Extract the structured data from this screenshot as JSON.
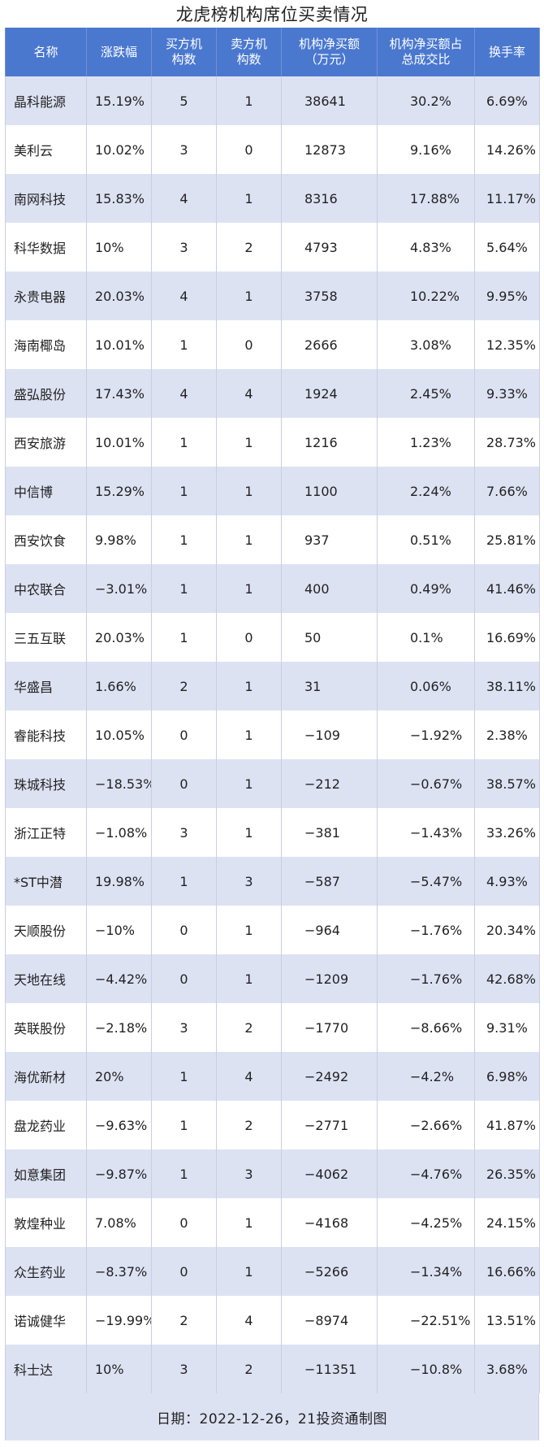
{
  "title": "龙虎榜机构席位买卖情况",
  "headers": [
    "名称",
    "涨跌幅",
    "买方机\n构数",
    "卖方机\n构数",
    "机构净买额\n（万元）",
    "机构净买额占\n总成交比",
    "换手率"
  ],
  "rows": [
    [
      "晶科能源",
      "15.19%",
      "5",
      "1",
      "38641",
      "30.2%",
      "6.69%"
    ],
    [
      "美利云",
      "10.02%",
      "3",
      "0",
      "12873",
      "9.16%",
      "14.26%"
    ],
    [
      "南网科技",
      "15.83%",
      "4",
      "1",
      "8316",
      "17.88%",
      "11.17%"
    ],
    [
      "科华数据",
      "10%",
      "3",
      "2",
      "4793",
      "4.83%",
      "5.64%"
    ],
    [
      "永贵电器",
      "20.03%",
      "4",
      "1",
      "3758",
      "10.22%",
      "9.95%"
    ],
    [
      "海南椰岛",
      "10.01%",
      "1",
      "0",
      "2666",
      "3.08%",
      "12.35%"
    ],
    [
      "盛弘股份",
      "17.43%",
      "4",
      "4",
      "1924",
      "2.45%",
      "9.33%"
    ],
    [
      "西安旅游",
      "10.01%",
      "1",
      "1",
      "1216",
      "1.23%",
      "28.73%"
    ],
    [
      "中信博",
      "15.29%",
      "1",
      "1",
      "1100",
      "2.24%",
      "7.66%"
    ],
    [
      "西安饮食",
      "9.98%",
      "1",
      "1",
      "937",
      "0.51%",
      "25.81%"
    ],
    [
      "中农联合",
      "−3.01%",
      "1",
      "1",
      "400",
      "0.49%",
      "41.46%"
    ],
    [
      "三五互联",
      "20.03%",
      "1",
      "0",
      "50",
      "0.1%",
      "16.69%"
    ],
    [
      "华盛昌",
      "1.66%",
      "2",
      "1",
      "31",
      "0.06%",
      "38.11%"
    ],
    [
      "睿能科技",
      "10.05%",
      "0",
      "1",
      "−109",
      "−1.92%",
      "2.38%"
    ],
    [
      "珠城科技",
      "−18.53%",
      "0",
      "1",
      "−212",
      "−0.67%",
      "38.57%"
    ],
    [
      "浙江正特",
      "−1.08%",
      "3",
      "1",
      "−381",
      "−1.43%",
      "33.26%"
    ],
    [
      "*ST中潜",
      "19.98%",
      "1",
      "3",
      "−587",
      "−5.47%",
      "4.93%"
    ],
    [
      "天顺股份",
      "−10%",
      "0",
      "1",
      "−964",
      "−1.76%",
      "20.34%"
    ],
    [
      "天地在线",
      "−4.42%",
      "0",
      "1",
      "−1209",
      "−1.76%",
      "42.68%"
    ],
    [
      "英联股份",
      "−2.18%",
      "3",
      "2",
      "−1770",
      "−8.66%",
      "9.31%"
    ],
    [
      "海优新材",
      "20%",
      "1",
      "4",
      "−2492",
      "−4.2%",
      "6.98%"
    ],
    [
      "盘龙药业",
      "−9.63%",
      "1",
      "2",
      "−2771",
      "−2.66%",
      "41.87%"
    ],
    [
      "如意集团",
      "−9.87%",
      "1",
      "3",
      "−4062",
      "−4.76%",
      "26.35%"
    ],
    [
      "敦煌种业",
      "7.08%",
      "0",
      "1",
      "−4168",
      "−4.25%",
      "24.15%"
    ],
    [
      "众生药业",
      "−8.37%",
      "0",
      "1",
      "−5266",
      "−1.34%",
      "16.66%"
    ],
    [
      "诺诚健华",
      "−19.99%",
      "2",
      "4",
      "−8974",
      "−22.51%",
      "13.51%"
    ],
    [
      "科士达",
      "10%",
      "3",
      "2",
      "−11351",
      "−10.8%",
      "3.68%"
    ]
  ],
  "footer": "日期：2022-12-26，21投资通制图",
  "colors": {
    "header_bg": "#4a78cf",
    "stripe_bg": "#dde2f3"
  }
}
